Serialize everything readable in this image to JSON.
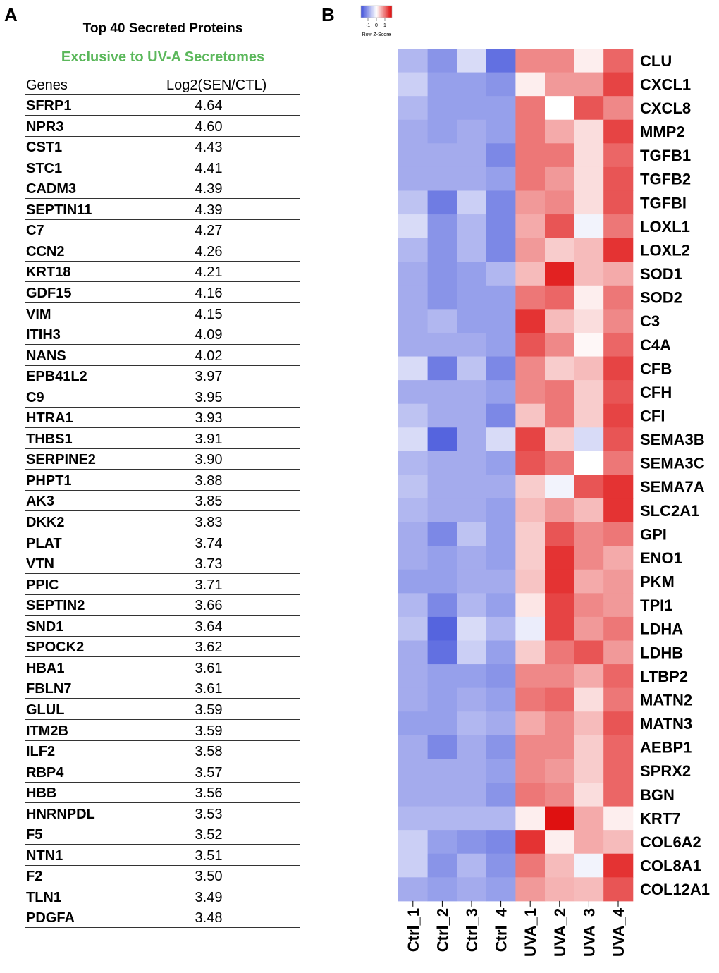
{
  "panels": {
    "a": "A",
    "b": "B"
  },
  "table": {
    "title": "Top 40 Secreted Proteins",
    "subtitle": "Exclusive to UV-A Secretomes",
    "subtitle_color": "#5cb85c",
    "header": {
      "gene": "Genes",
      "value": "Log2(SEN/CTL)"
    },
    "rows": [
      {
        "gene": "SFRP1",
        "value": "4.64"
      },
      {
        "gene": "NPR3",
        "value": "4.60"
      },
      {
        "gene": "CST1",
        "value": "4.43"
      },
      {
        "gene": "STC1",
        "value": "4.41"
      },
      {
        "gene": "CADM3",
        "value": "4.39"
      },
      {
        "gene": "SEPTIN11",
        "value": "4.39"
      },
      {
        "gene": "C7",
        "value": "4.27"
      },
      {
        "gene": "CCN2",
        "value": "4.26"
      },
      {
        "gene": "KRT18",
        "value": "4.21"
      },
      {
        "gene": "GDF15",
        "value": "4.16"
      },
      {
        "gene": "VIM",
        "value": "4.15"
      },
      {
        "gene": "ITIH3",
        "value": "4.09"
      },
      {
        "gene": "NANS",
        "value": "4.02"
      },
      {
        "gene": "EPB41L2",
        "value": "3.97"
      },
      {
        "gene": "C9",
        "value": "3.95"
      },
      {
        "gene": "HTRA1",
        "value": "3.93"
      },
      {
        "gene": "THBS1",
        "value": "3.91"
      },
      {
        "gene": "SERPINE2",
        "value": "3.90"
      },
      {
        "gene": "PHPT1",
        "value": "3.88"
      },
      {
        "gene": "AK3",
        "value": "3.85"
      },
      {
        "gene": "DKK2",
        "value": "3.83"
      },
      {
        "gene": "PLAT",
        "value": "3.74"
      },
      {
        "gene": "VTN",
        "value": "3.73"
      },
      {
        "gene": "PPIC",
        "value": "3.71"
      },
      {
        "gene": "SEPTIN2",
        "value": "3.66"
      },
      {
        "gene": "SND1",
        "value": "3.64"
      },
      {
        "gene": "SPOCK2",
        "value": "3.62"
      },
      {
        "gene": "HBA1",
        "value": "3.61"
      },
      {
        "gene": "FBLN7",
        "value": "3.61"
      },
      {
        "gene": "GLUL",
        "value": "3.59"
      },
      {
        "gene": "ITM2B",
        "value": "3.59"
      },
      {
        "gene": "ILF2",
        "value": "3.58"
      },
      {
        "gene": "RBP4",
        "value": "3.57"
      },
      {
        "gene": "HBB",
        "value": "3.56"
      },
      {
        "gene": "HNRNPDL",
        "value": "3.53"
      },
      {
        "gene": "F5",
        "value": "3.52"
      },
      {
        "gene": "NTN1",
        "value": "3.51"
      },
      {
        "gene": "F2",
        "value": "3.50"
      },
      {
        "gene": "TLN1",
        "value": "3.49"
      },
      {
        "gene": "PDGFA",
        "value": "3.48"
      }
    ]
  },
  "chart_data": {
    "type": "heatmap",
    "legend": {
      "ticks": [
        "-1",
        "0",
        "1"
      ],
      "label": "Row Z-Score",
      "low_color": "#3b4cd9",
      "mid_color": "#ffffff",
      "high_color": "#dd0000"
    },
    "columns": [
      "Ctrl_1",
      "Ctrl_2",
      "Ctrl_3",
      "Ctrl_4",
      "UVA_1",
      "UVA_2",
      "UVA_3",
      "UVA_4"
    ],
    "rows": [
      "CLU",
      "CXCL1",
      "CXCL8",
      "MMP2",
      "TGFB1",
      "TGFB2",
      "TGFBI",
      "LOXL1",
      "LOXL2",
      "SOD1",
      "SOD2",
      "C3",
      "C4A",
      "CFB",
      "CFH",
      "CFI",
      "SEMA3B",
      "SEMA3C",
      "SEMA7A",
      "SLC2A1",
      "GPI",
      "ENO1",
      "PKM",
      "TPI1",
      "LDHA",
      "LDHB",
      "LTBP2",
      "MATN2",
      "MATN3",
      "AEBP1",
      "SPRX2",
      "BGN",
      "KRT7",
      "COL6A2",
      "COL8A1",
      "COL12A1"
    ],
    "values": [
      [
        -0.6,
        -0.9,
        -0.3,
        -1.2,
        0.7,
        0.7,
        0.1,
        0.9
      ],
      [
        -0.4,
        -0.8,
        -0.8,
        -0.9,
        0.1,
        0.6,
        0.6,
        1.1
      ],
      [
        -0.6,
        -0.8,
        -0.8,
        -0.8,
        0.8,
        0.0,
        1.0,
        0.7
      ],
      [
        -0.7,
        -0.8,
        -0.7,
        -0.8,
        0.8,
        0.5,
        0.2,
        1.1
      ],
      [
        -0.7,
        -0.7,
        -0.7,
        -1.0,
        0.8,
        0.8,
        0.2,
        0.9
      ],
      [
        -0.7,
        -0.7,
        -0.7,
        -0.8,
        0.8,
        0.6,
        0.2,
        1.0
      ],
      [
        -0.5,
        -1.1,
        -0.4,
        -1.0,
        0.6,
        0.7,
        0.2,
        1.0
      ],
      [
        -0.3,
        -0.9,
        -0.6,
        -1.0,
        0.5,
        1.0,
        -0.1,
        0.8
      ],
      [
        -0.6,
        -0.9,
        -0.6,
        -1.0,
        0.6,
        0.3,
        0.4,
        1.2
      ],
      [
        -0.7,
        -0.9,
        -0.8,
        -0.6,
        0.4,
        1.3,
        0.4,
        0.5
      ],
      [
        -0.7,
        -0.9,
        -0.8,
        -0.8,
        0.8,
        0.9,
        0.1,
        0.8
      ],
      [
        -0.7,
        -0.6,
        -0.8,
        -0.8,
        1.2,
        0.4,
        0.2,
        0.7
      ],
      [
        -0.7,
        -0.7,
        -0.7,
        -0.8,
        1.0,
        0.7,
        0.05,
        0.9
      ],
      [
        -0.3,
        -1.1,
        -0.5,
        -1.0,
        0.7,
        0.3,
        0.4,
        1.1
      ],
      [
        -0.7,
        -0.7,
        -0.7,
        -0.8,
        0.7,
        0.8,
        0.3,
        1.0
      ],
      [
        -0.5,
        -0.7,
        -0.7,
        -1.0,
        0.35,
        0.8,
        0.3,
        1.1
      ],
      [
        -0.3,
        -1.3,
        -0.7,
        -0.3,
        1.1,
        0.3,
        -0.3,
        1.0
      ],
      [
        -0.6,
        -0.7,
        -0.7,
        -0.8,
        1.0,
        0.8,
        0.0,
        0.8
      ],
      [
        -0.5,
        -0.7,
        -0.7,
        -0.7,
        0.3,
        -0.1,
        1.0,
        1.2
      ],
      [
        -0.6,
        -0.7,
        -0.7,
        -0.8,
        0.4,
        0.6,
        0.4,
        1.2
      ],
      [
        -0.7,
        -1.0,
        -0.5,
        -0.8,
        0.3,
        1.0,
        0.7,
        0.8
      ],
      [
        -0.7,
        -0.8,
        -0.7,
        -0.8,
        0.3,
        1.2,
        0.7,
        0.5
      ],
      [
        -0.8,
        -0.8,
        -0.7,
        -0.7,
        0.35,
        1.2,
        0.5,
        0.6
      ],
      [
        -0.6,
        -1.0,
        -0.6,
        -0.8,
        0.15,
        1.1,
        0.7,
        0.6
      ],
      [
        -0.5,
        -1.3,
        -0.3,
        -0.6,
        -0.15,
        1.1,
        0.6,
        0.8
      ],
      [
        -0.7,
        -1.2,
        -0.4,
        -0.8,
        0.3,
        0.8,
        1.0,
        0.6
      ],
      [
        -0.7,
        -0.8,
        -0.8,
        -0.9,
        0.7,
        0.7,
        0.5,
        0.9
      ],
      [
        -0.7,
        -0.8,
        -0.7,
        -0.8,
        0.8,
        0.9,
        0.2,
        0.8
      ],
      [
        -0.8,
        -0.8,
        -0.6,
        -0.7,
        0.5,
        0.7,
        0.4,
        1.0
      ],
      [
        -0.7,
        -1.0,
        -0.7,
        -0.9,
        0.7,
        0.7,
        0.3,
        0.9
      ],
      [
        -0.7,
        -0.7,
        -0.7,
        -0.8,
        0.7,
        0.6,
        0.3,
        0.9
      ],
      [
        -0.7,
        -0.7,
        -0.7,
        -0.9,
        0.8,
        0.7,
        0.2,
        0.9
      ],
      [
        -0.6,
        -0.6,
        -0.6,
        -0.6,
        0.1,
        1.4,
        0.5,
        0.1
      ],
      [
        -0.4,
        -0.8,
        -0.9,
        -1.0,
        1.2,
        0.1,
        0.5,
        0.4
      ],
      [
        -0.4,
        -0.9,
        -0.6,
        -0.9,
        0.8,
        0.4,
        -0.1,
        1.2
      ],
      [
        -0.7,
        -0.8,
        -0.7,
        -0.8,
        0.6,
        0.45,
        0.4,
        1.0
      ]
    ],
    "xlabel": "",
    "ylabel": ""
  }
}
